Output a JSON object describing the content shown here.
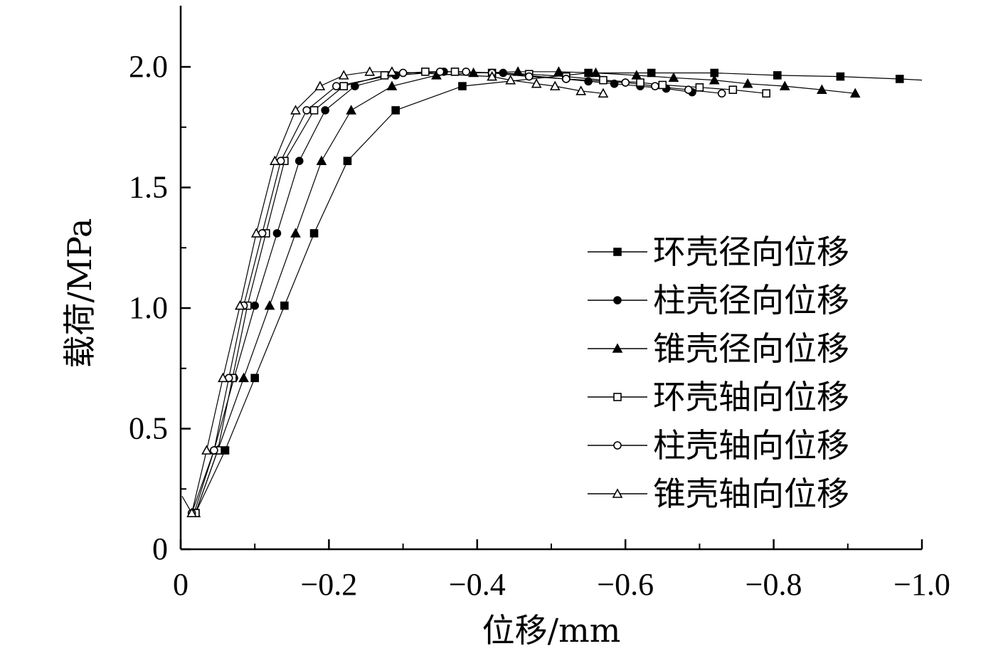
{
  "chart_data": {
    "type": "line",
    "xlabel": "位移/mm",
    "ylabel": "载荷/MPa",
    "xlim": [
      0,
      -1.0
    ],
    "ylim": [
      0,
      2.25
    ],
    "x_ticks": [
      "0",
      "−0.2",
      "−0.4",
      "−0.6",
      "−0.8",
      "−1.0"
    ],
    "x_tick_values": [
      0,
      -0.2,
      -0.4,
      -0.6,
      -0.8,
      -1.0
    ],
    "y_ticks": [
      "0",
      "0.5",
      "1.0",
      "1.5",
      "2.0"
    ],
    "y_tick_values": [
      0,
      0.5,
      1.0,
      1.5,
      2.0
    ],
    "legend_position": "right",
    "series": [
      {
        "name": "环壳径向位移",
        "marker": "filled-square",
        "x": [
          -0.02,
          -0.06,
          -0.1,
          -0.14,
          -0.18,
          -0.225,
          -0.29,
          -0.38,
          -0.55,
          -0.635,
          -0.72,
          -0.805,
          -0.89,
          -0.97
        ],
        "y": [
          0.15,
          0.41,
          0.71,
          1.01,
          1.31,
          1.61,
          1.82,
          1.92,
          1.975,
          1.975,
          1.975,
          1.965,
          1.96,
          1.95
        ]
      },
      {
        "name": "柱壳径向位移",
        "marker": "filled-circle",
        "x": [
          -0.018,
          -0.045,
          -0.072,
          -0.1,
          -0.13,
          -0.16,
          -0.195,
          -0.235,
          -0.29,
          -0.355,
          -0.435,
          -0.55,
          -0.585,
          -0.62,
          -0.655,
          -0.69
        ],
        "y": [
          0.15,
          0.41,
          0.71,
          1.01,
          1.31,
          1.61,
          1.82,
          1.92,
          1.965,
          1.98,
          1.975,
          1.94,
          1.93,
          1.92,
          1.91,
          1.895
        ]
      },
      {
        "name": "锥壳径向位移",
        "marker": "filled-triangle",
        "x": [
          -0.02,
          -0.05,
          -0.085,
          -0.12,
          -0.155,
          -0.19,
          -0.23,
          -0.285,
          -0.345,
          -0.395,
          -0.455,
          -0.51,
          -0.56,
          -0.615,
          -0.665,
          -0.72,
          -0.765,
          -0.815,
          -0.865,
          -0.91
        ],
        "y": [
          0.15,
          0.41,
          0.71,
          1.01,
          1.31,
          1.61,
          1.82,
          1.92,
          1.965,
          1.975,
          1.98,
          1.98,
          1.975,
          1.965,
          1.955,
          1.945,
          1.93,
          1.92,
          1.905,
          1.89
        ]
      },
      {
        "name": "环壳轴向位移",
        "marker": "open-square",
        "x": [
          -0.02,
          -0.05,
          -0.07,
          -0.09,
          -0.115,
          -0.14,
          -0.18,
          -0.22,
          -0.275,
          -0.33,
          -0.37,
          -0.42,
          -0.47,
          -0.52,
          -0.57,
          -0.62,
          -0.65,
          -0.7,
          -0.745,
          -0.79
        ],
        "y": [
          0.15,
          0.41,
          0.71,
          1.01,
          1.31,
          1.61,
          1.82,
          1.92,
          1.965,
          1.98,
          1.98,
          1.975,
          1.97,
          1.96,
          1.945,
          1.935,
          1.925,
          1.915,
          1.905,
          1.89
        ]
      },
      {
        "name": "柱壳轴向位移",
        "marker": "open-circle",
        "x": [
          -0.015,
          -0.045,
          -0.065,
          -0.085,
          -0.11,
          -0.135,
          -0.17,
          -0.21,
          -0.3,
          -0.35,
          -0.385,
          -0.42,
          -0.47,
          -0.52,
          -0.6,
          -0.64,
          -0.685,
          -0.73
        ],
        "y": [
          0.15,
          0.41,
          0.71,
          1.01,
          1.31,
          1.61,
          1.82,
          1.92,
          1.975,
          1.98,
          1.98,
          1.975,
          1.96,
          1.95,
          1.935,
          1.92,
          1.905,
          1.89
        ]
      },
      {
        "name": "锥壳轴向位移",
        "marker": "open-triangle",
        "x": [
          -0.015,
          -0.035,
          -0.057,
          -0.08,
          -0.102,
          -0.127,
          -0.155,
          -0.188,
          -0.22,
          -0.255,
          -0.285,
          -0.42,
          -0.445,
          -0.48,
          -0.505,
          -0.54,
          -0.57
        ],
        "y": [
          0.15,
          0.41,
          0.71,
          1.01,
          1.31,
          1.61,
          1.82,
          1.92,
          1.965,
          1.98,
          1.98,
          1.96,
          1.945,
          1.93,
          1.92,
          1.9,
          1.89
        ]
      }
    ]
  }
}
